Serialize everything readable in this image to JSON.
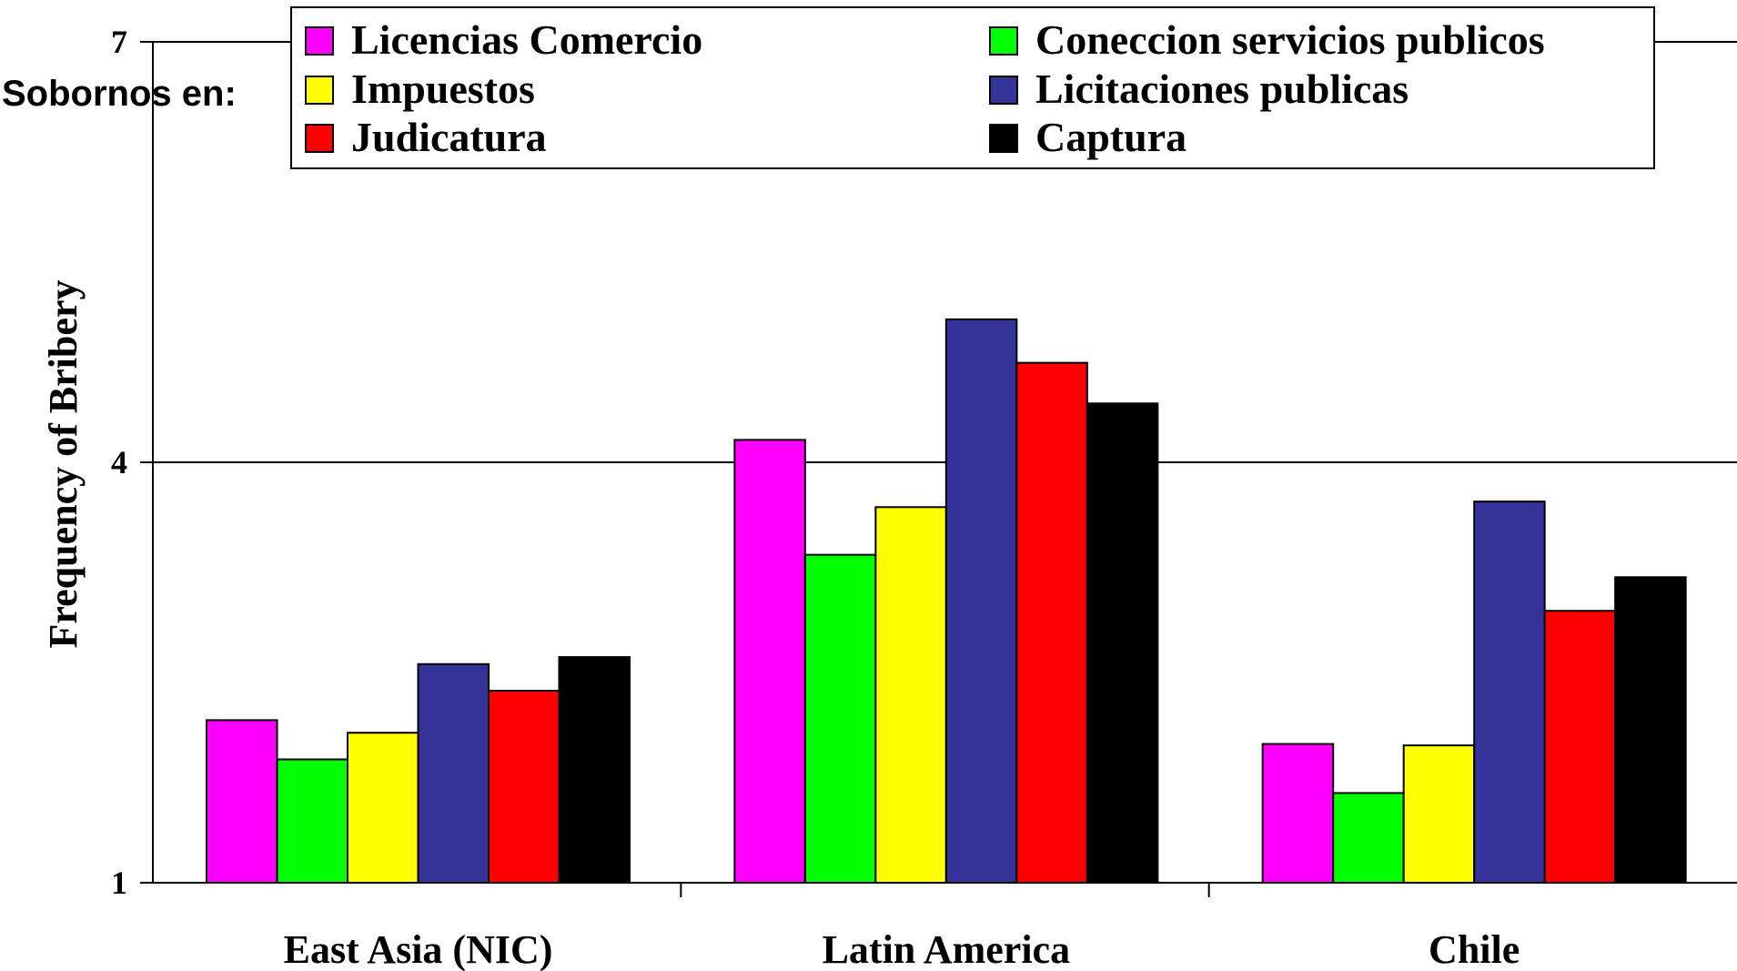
{
  "chart_data": {
    "type": "bar",
    "title": "",
    "xlabel": "",
    "ylabel": "Frequency of Bribery",
    "ylim": [
      1,
      7
    ],
    "yticks": [
      1,
      4,
      7
    ],
    "grid": "horizontal at 4 and 7",
    "legend_title": "Sobornos en:",
    "legend_placement": "top",
    "categories": [
      "East Asia (NIC)",
      "Latin America",
      "Chile"
    ],
    "series": [
      {
        "name": "Licencias Comercio",
        "color": "#FF00FF",
        "values": [
          2.16,
          4.16,
          1.99
        ]
      },
      {
        "name": "Coneccion servicios publicos",
        "color": "#00FF00",
        "values": [
          1.88,
          3.34,
          1.64
        ]
      },
      {
        "name": "Impuestos",
        "color": "#FFFF00",
        "values": [
          2.07,
          3.68,
          1.98
        ]
      },
      {
        "name": "Licitaciones publicas",
        "color": "#333399",
        "values": [
          2.56,
          5.02,
          3.72
        ]
      },
      {
        "name": "Judicatura",
        "color": "#FF0000",
        "values": [
          2.37,
          4.71,
          2.94
        ]
      },
      {
        "name": "Captura",
        "color": "#000000",
        "values": [
          2.61,
          4.42,
          3.18
        ]
      }
    ]
  }
}
